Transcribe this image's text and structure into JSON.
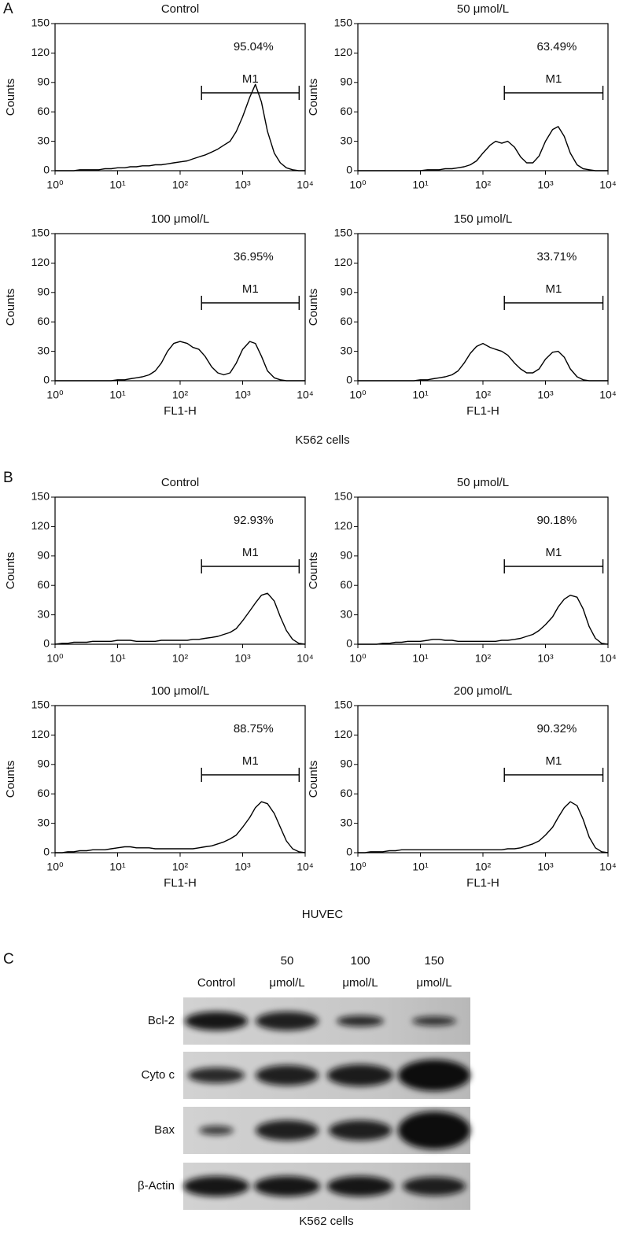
{
  "panels": [
    {
      "label": "A",
      "caption": "K562 cells"
    },
    {
      "label": "B",
      "caption": "HUVEC"
    },
    {
      "label": "C",
      "caption": "K562 cells"
    }
  ],
  "chart_data": [
    {
      "type": "line",
      "title": "Control",
      "ylabel": "Counts",
      "log_x": true,
      "color": "#000000",
      "xlim": [
        1,
        10000
      ],
      "ylim": [
        0,
        150
      ],
      "xticks": [
        {
          "value": 1,
          "label": "10⁰"
        },
        {
          "value": 10,
          "label": "10¹"
        },
        {
          "value": 100,
          "label": "10²"
        },
        {
          "value": 1000,
          "label": "10³"
        },
        {
          "value": 10000,
          "label": "10⁴"
        }
      ],
      "yticks": [
        0,
        30,
        60,
        90,
        120,
        150
      ],
      "gate": {
        "label": "M1",
        "range": [
          220,
          8000
        ]
      },
      "annotation": "95.04%",
      "x": [
        1,
        1.3,
        1.6,
        2,
        2.5,
        3.2,
        4,
        5,
        6.3,
        7.9,
        10,
        13,
        16,
        20,
        25,
        32,
        40,
        50,
        63,
        79,
        100,
        130,
        160,
        200,
        250,
        320,
        400,
        500,
        630,
        790,
        1000,
        1300,
        1600,
        2000,
        2500,
        3200,
        4000,
        5000,
        6300,
        7900,
        10000
      ],
      "values": [
        0,
        0,
        0,
        0,
        1,
        1,
        1,
        1,
        2,
        2,
        3,
        3,
        4,
        4,
        5,
        5,
        6,
        6,
        7,
        8,
        9,
        10,
        12,
        14,
        16,
        19,
        22,
        26,
        30,
        40,
        55,
        75,
        88,
        70,
        40,
        18,
        8,
        3,
        1,
        0,
        0
      ]
    },
    {
      "type": "line",
      "title": "50 μmol/L",
      "ylabel": "Counts",
      "log_x": true,
      "color": "#000000",
      "xlim": [
        1,
        10000
      ],
      "ylim": [
        0,
        150
      ],
      "xticks": [
        {
          "value": 1,
          "label": "10⁰"
        },
        {
          "value": 10,
          "label": "10¹"
        },
        {
          "value": 100,
          "label": "10²"
        },
        {
          "value": 1000,
          "label": "10³"
        },
        {
          "value": 10000,
          "label": "10⁴"
        }
      ],
      "yticks": [
        0,
        30,
        60,
        90,
        120,
        150
      ],
      "gate": {
        "label": "M1",
        "range": [
          220,
          8300
        ]
      },
      "annotation": "63.49%",
      "x": [
        1,
        1.3,
        1.6,
        2,
        2.5,
        3.2,
        4,
        5,
        6.3,
        7.9,
        10,
        13,
        16,
        20,
        25,
        32,
        40,
        50,
        63,
        79,
        100,
        130,
        160,
        200,
        250,
        320,
        400,
        500,
        630,
        790,
        1000,
        1300,
        1600,
        2000,
        2500,
        3200,
        4000,
        5000,
        6300,
        7900,
        10000
      ],
      "values": [
        0,
        0,
        0,
        0,
        0,
        0,
        0,
        0,
        0,
        0,
        0,
        1,
        1,
        1,
        2,
        2,
        3,
        4,
        6,
        10,
        18,
        26,
        30,
        28,
        30,
        24,
        14,
        8,
        8,
        15,
        30,
        42,
        45,
        35,
        18,
        6,
        2,
        1,
        0,
        0,
        0
      ]
    },
    {
      "type": "line",
      "title": "100 μmol/L",
      "ylabel": "Counts",
      "xlabel": "FL1-H",
      "log_x": true,
      "color": "#000000",
      "xlim": [
        1,
        10000
      ],
      "ylim": [
        0,
        150
      ],
      "xticks": [
        {
          "value": 1,
          "label": "10⁰"
        },
        {
          "value": 10,
          "label": "10¹"
        },
        {
          "value": 100,
          "label": "10²"
        },
        {
          "value": 1000,
          "label": "10³"
        },
        {
          "value": 10000,
          "label": "10⁴"
        }
      ],
      "yticks": [
        0,
        30,
        60,
        90,
        120,
        150
      ],
      "gate": {
        "label": "M1",
        "range": [
          220,
          8000
        ]
      },
      "annotation": "36.95%",
      "x": [
        1,
        1.3,
        1.6,
        2,
        2.5,
        3.2,
        4,
        5,
        6.3,
        7.9,
        10,
        13,
        16,
        20,
        25,
        32,
        40,
        50,
        63,
        79,
        100,
        130,
        160,
        200,
        250,
        320,
        400,
        500,
        630,
        790,
        1000,
        1300,
        1600,
        2000,
        2500,
        3200,
        4000,
        5000,
        6300,
        7900,
        10000
      ],
      "values": [
        0,
        0,
        0,
        0,
        0,
        0,
        0,
        0,
        0,
        0,
        1,
        1,
        2,
        3,
        4,
        6,
        10,
        18,
        30,
        38,
        40,
        38,
        34,
        32,
        25,
        14,
        8,
        6,
        8,
        18,
        32,
        40,
        38,
        25,
        10,
        3,
        1,
        0,
        0,
        0,
        0
      ]
    },
    {
      "type": "line",
      "title": "150 μmol/L",
      "ylabel": "Counts",
      "xlabel": "FL1-H",
      "log_x": true,
      "color": "#000000",
      "xlim": [
        1,
        10000
      ],
      "ylim": [
        0,
        150
      ],
      "xticks": [
        {
          "value": 1,
          "label": "10⁰"
        },
        {
          "value": 10,
          "label": "10¹"
        },
        {
          "value": 100,
          "label": "10²"
        },
        {
          "value": 1000,
          "label": "10³"
        },
        {
          "value": 10000,
          "label": "10⁴"
        }
      ],
      "yticks": [
        0,
        30,
        60,
        90,
        120,
        150
      ],
      "gate": {
        "label": "M1",
        "range": [
          220,
          8300
        ]
      },
      "annotation": "33.71%",
      "x": [
        1,
        1.3,
        1.6,
        2,
        2.5,
        3.2,
        4,
        5,
        6.3,
        7.9,
        10,
        13,
        16,
        20,
        25,
        32,
        40,
        50,
        63,
        79,
        100,
        130,
        160,
        200,
        250,
        320,
        400,
        500,
        630,
        790,
        1000,
        1300,
        1600,
        2000,
        2500,
        3200,
        4000,
        5000,
        6300,
        7900,
        10000
      ],
      "values": [
        0,
        0,
        0,
        0,
        0,
        0,
        0,
        0,
        0,
        0,
        1,
        1,
        2,
        3,
        4,
        6,
        10,
        18,
        28,
        35,
        38,
        34,
        32,
        30,
        26,
        18,
        12,
        8,
        8,
        12,
        22,
        29,
        30,
        24,
        12,
        4,
        1,
        0,
        0,
        0,
        0
      ]
    },
    {
      "type": "line",
      "title": "Control",
      "ylabel": "Counts",
      "log_x": true,
      "color": "#000000",
      "xlim": [
        1,
        10000
      ],
      "ylim": [
        0,
        150
      ],
      "xticks": [
        {
          "value": 1,
          "label": "10⁰"
        },
        {
          "value": 10,
          "label": "10¹"
        },
        {
          "value": 100,
          "label": "10²"
        },
        {
          "value": 1000,
          "label": "10³"
        },
        {
          "value": 10000,
          "label": "10⁴"
        }
      ],
      "yticks": [
        0,
        30,
        60,
        90,
        120,
        150
      ],
      "gate": {
        "label": "M1",
        "range": [
          220,
          8000
        ]
      },
      "annotation": "92.93%",
      "x": [
        1,
        1.3,
        1.6,
        2,
        2.5,
        3.2,
        4,
        5,
        6.3,
        7.9,
        10,
        13,
        16,
        20,
        25,
        32,
        40,
        50,
        63,
        79,
        100,
        130,
        160,
        200,
        250,
        320,
        400,
        500,
        630,
        790,
        1000,
        1300,
        1600,
        2000,
        2500,
        3200,
        4000,
        5000,
        6300,
        7900,
        10000
      ],
      "values": [
        0,
        1,
        1,
        2,
        2,
        2,
        3,
        3,
        3,
        3,
        4,
        4,
        4,
        3,
        3,
        3,
        3,
        4,
        4,
        4,
        4,
        4,
        5,
        5,
        6,
        7,
        8,
        10,
        12,
        16,
        24,
        34,
        42,
        50,
        52,
        44,
        28,
        14,
        5,
        1,
        0
      ]
    },
    {
      "type": "line",
      "title": "50 μmol/L",
      "ylabel": "Counts",
      "log_x": true,
      "color": "#000000",
      "xlim": [
        1,
        10000
      ],
      "ylim": [
        0,
        150
      ],
      "xticks": [
        {
          "value": 1,
          "label": "10⁰"
        },
        {
          "value": 10,
          "label": "10¹"
        },
        {
          "value": 100,
          "label": "10²"
        },
        {
          "value": 1000,
          "label": "10³"
        },
        {
          "value": 10000,
          "label": "10⁴"
        }
      ],
      "yticks": [
        0,
        30,
        60,
        90,
        120,
        150
      ],
      "gate": {
        "label": "M1",
        "range": [
          220,
          8300
        ]
      },
      "annotation": "90.18%",
      "x": [
        1,
        1.3,
        1.6,
        2,
        2.5,
        3.2,
        4,
        5,
        6.3,
        7.9,
        10,
        13,
        16,
        20,
        25,
        32,
        40,
        50,
        63,
        79,
        100,
        130,
        160,
        200,
        250,
        320,
        400,
        500,
        630,
        790,
        1000,
        1300,
        1600,
        2000,
        2500,
        3200,
        4000,
        5000,
        6300,
        7900,
        10000
      ],
      "values": [
        0,
        0,
        0,
        0,
        1,
        1,
        2,
        2,
        3,
        3,
        3,
        4,
        5,
        5,
        4,
        4,
        3,
        3,
        3,
        3,
        3,
        3,
        3,
        4,
        4,
        5,
        6,
        8,
        10,
        14,
        20,
        28,
        38,
        46,
        50,
        48,
        36,
        18,
        6,
        1,
        0
      ]
    },
    {
      "type": "line",
      "title": "100 μmol/L",
      "ylabel": "Counts",
      "xlabel": "FL1-H",
      "log_x": true,
      "color": "#000000",
      "xlim": [
        1,
        10000
      ],
      "ylim": [
        0,
        150
      ],
      "xticks": [
        {
          "value": 1,
          "label": "10⁰"
        },
        {
          "value": 10,
          "label": "10¹"
        },
        {
          "value": 100,
          "label": "10²"
        },
        {
          "value": 1000,
          "label": "10³"
        },
        {
          "value": 10000,
          "label": "10⁴"
        }
      ],
      "yticks": [
        0,
        30,
        60,
        90,
        120,
        150
      ],
      "gate": {
        "label": "M1",
        "range": [
          220,
          8000
        ]
      },
      "annotation": "88.75%",
      "x": [
        1,
        1.3,
        1.6,
        2,
        2.5,
        3.2,
        4,
        5,
        6.3,
        7.9,
        10,
        13,
        16,
        20,
        25,
        32,
        40,
        50,
        63,
        79,
        100,
        130,
        160,
        200,
        250,
        320,
        400,
        500,
        630,
        790,
        1000,
        1300,
        1600,
        2000,
        2500,
        3200,
        4000,
        5000,
        6300,
        7900,
        10000
      ],
      "values": [
        0,
        0,
        1,
        1,
        2,
        2,
        3,
        3,
        3,
        4,
        5,
        6,
        6,
        5,
        5,
        5,
        4,
        4,
        4,
        4,
        4,
        4,
        4,
        5,
        6,
        7,
        9,
        11,
        14,
        18,
        26,
        36,
        46,
        52,
        50,
        40,
        26,
        12,
        4,
        1,
        0
      ]
    },
    {
      "type": "line",
      "title": "200 μmol/L",
      "ylabel": "Counts",
      "xlabel": "FL1-H",
      "log_x": true,
      "color": "#000000",
      "xlim": [
        1,
        10000
      ],
      "ylim": [
        0,
        150
      ],
      "xticks": [
        {
          "value": 1,
          "label": "10⁰"
        },
        {
          "value": 10,
          "label": "10¹"
        },
        {
          "value": 100,
          "label": "10²"
        },
        {
          "value": 1000,
          "label": "10³"
        },
        {
          "value": 10000,
          "label": "10⁴"
        }
      ],
      "yticks": [
        0,
        30,
        60,
        90,
        120,
        150
      ],
      "gate": {
        "label": "M1",
        "range": [
          220,
          8300
        ]
      },
      "annotation": "90.32%",
      "x": [
        1,
        1.3,
        1.6,
        2,
        2.5,
        3.2,
        4,
        5,
        6.3,
        7.9,
        10,
        13,
        16,
        20,
        25,
        32,
        40,
        50,
        63,
        79,
        100,
        130,
        160,
        200,
        250,
        320,
        400,
        500,
        630,
        790,
        1000,
        1300,
        1600,
        2000,
        2500,
        3200,
        4000,
        5000,
        6300,
        7900,
        10000
      ],
      "values": [
        0,
        0,
        1,
        1,
        1,
        2,
        2,
        3,
        3,
        3,
        3,
        3,
        3,
        3,
        3,
        3,
        3,
        3,
        3,
        3,
        3,
        3,
        3,
        3,
        4,
        4,
        5,
        7,
        9,
        12,
        18,
        26,
        36,
        46,
        52,
        48,
        34,
        16,
        5,
        1,
        0
      ]
    }
  ],
  "blot": {
    "lanes": [
      [
        "Control"
      ],
      [
        "50",
        "μmol/L"
      ],
      [
        "100",
        "μmol/L"
      ],
      [
        "150",
        "μmol/L"
      ]
    ],
    "rows": [
      "Bcl-2",
      "Cyto c",
      "Bax",
      "β-Actin"
    ]
  }
}
